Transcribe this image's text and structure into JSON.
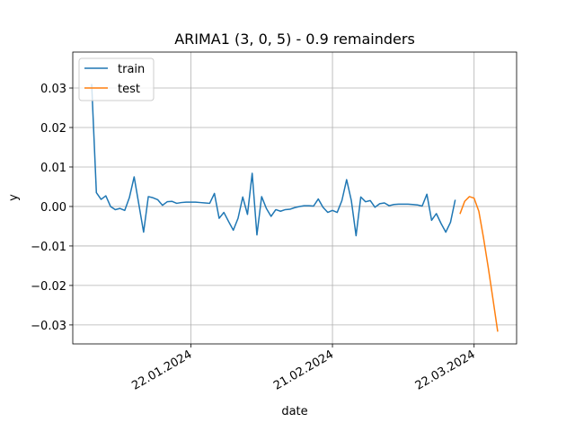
{
  "chart_data": {
    "type": "line",
    "title": "ARIMA1 (3, 0, 5) - 0.9 remainders",
    "x_label": "date",
    "y_label": "y",
    "x": [
      "2024-01-01",
      "2024-01-02",
      "2024-01-03",
      "2024-01-04",
      "2024-01-05",
      "2024-01-06",
      "2024-01-07",
      "2024-01-08",
      "2024-01-09",
      "2024-01-10",
      "2024-01-11",
      "2024-01-12",
      "2024-01-13",
      "2024-01-14",
      "2024-01-15",
      "2024-01-16",
      "2024-01-17",
      "2024-01-18",
      "2024-01-19",
      "2024-01-20",
      "2024-01-21",
      "2024-01-22",
      "2024-01-23",
      "2024-01-24",
      "2024-01-25",
      "2024-01-26",
      "2024-01-27",
      "2024-01-28",
      "2024-01-29",
      "2024-01-30",
      "2024-01-31",
      "2024-02-01",
      "2024-02-02",
      "2024-02-03",
      "2024-02-04",
      "2024-02-05",
      "2024-02-06",
      "2024-02-07",
      "2024-02-08",
      "2024-02-09",
      "2024-02-10",
      "2024-02-11",
      "2024-02-12",
      "2024-02-13",
      "2024-02-14",
      "2024-02-15",
      "2024-02-16",
      "2024-02-17",
      "2024-02-18",
      "2024-02-19",
      "2024-02-20",
      "2024-02-21",
      "2024-02-22",
      "2024-02-23",
      "2024-02-24",
      "2024-02-25",
      "2024-02-26",
      "2024-02-27",
      "2024-02-28",
      "2024-02-29",
      "2024-03-01",
      "2024-03-02",
      "2024-03-03",
      "2024-03-04",
      "2024-03-05",
      "2024-03-06",
      "2024-03-07",
      "2024-03-08",
      "2024-03-09",
      "2024-03-10",
      "2024-03-11",
      "2024-03-12",
      "2024-03-13",
      "2024-03-14",
      "2024-03-15",
      "2024-03-16",
      "2024-03-17",
      "2024-03-18",
      "2024-03-19",
      "2024-03-20",
      "2024-03-21",
      "2024-03-22",
      "2024-03-23",
      "2024-03-24",
      "2024-03-25",
      "2024-03-26",
      "2024-03-27"
    ],
    "series": [
      {
        "name": "train",
        "color": "#1f77b4",
        "values": [
          0.031,
          0.0035,
          0.0018,
          0.0027,
          0.0,
          -0.0008,
          -0.0005,
          -0.001,
          0.0023,
          0.0075,
          0.0005,
          -0.0065,
          0.0025,
          0.0022,
          0.0017,
          0.0003,
          0.0012,
          0.0013,
          0.0008,
          0.001,
          0.0011,
          0.0011,
          0.0011,
          0.001,
          0.0009,
          0.0008,
          0.0033,
          -0.003,
          -0.0015,
          -0.0038,
          -0.006,
          -0.003,
          0.0024,
          -0.002,
          0.0084,
          -0.0072,
          0.0025,
          -0.0005,
          -0.0025,
          -0.0008,
          -0.0012,
          -0.0008,
          -0.0007,
          -0.0003,
          0.0,
          0.0002,
          0.0002,
          0.0001,
          0.0019,
          -0.0002,
          -0.0015,
          -0.001,
          -0.0015,
          0.0015,
          0.0068,
          0.0015,
          -0.0074,
          0.0024,
          0.0012,
          0.0015,
          -0.0002,
          0.0007,
          0.0009,
          0.0002,
          0.0005,
          0.0006,
          0.0006,
          0.0006,
          0.0005,
          0.0004,
          0.0001,
          0.0031,
          -0.0035,
          -0.0018,
          -0.0043,
          -0.0065,
          -0.004,
          0.0017,
          null,
          null,
          null,
          null,
          null,
          null,
          null,
          null,
          null
        ]
      },
      {
        "name": "test",
        "color": "#ff7f0e",
        "values": [
          null,
          null,
          null,
          null,
          null,
          null,
          null,
          null,
          null,
          null,
          null,
          null,
          null,
          null,
          null,
          null,
          null,
          null,
          null,
          null,
          null,
          null,
          null,
          null,
          null,
          null,
          null,
          null,
          null,
          null,
          null,
          null,
          null,
          null,
          null,
          null,
          null,
          null,
          null,
          null,
          null,
          null,
          null,
          null,
          null,
          null,
          null,
          null,
          null,
          null,
          null,
          null,
          null,
          null,
          null,
          null,
          null,
          null,
          null,
          null,
          null,
          null,
          null,
          null,
          null,
          null,
          null,
          null,
          null,
          null,
          null,
          null,
          null,
          null,
          null,
          null,
          null,
          null,
          -0.0019,
          0.0013,
          0.0025,
          0.0021,
          -0.0012,
          -0.008,
          -0.0155,
          -0.0235,
          -0.0317
        ]
      }
    ],
    "xlim": [
      "2023-12-28",
      "2024-03-31"
    ],
    "xticks": [
      {
        "value": "2024-01-22",
        "label": "22.01.2024"
      },
      {
        "value": "2024-02-21",
        "label": "21.02.2024"
      },
      {
        "value": "2024-03-22",
        "label": "22.03.2024"
      }
    ],
    "ylim": [
      -0.0348,
      0.0391
    ],
    "yticks": [
      {
        "value": -0.03,
        "label": "−0.03"
      },
      {
        "value": -0.02,
        "label": "−0.02"
      },
      {
        "value": -0.01,
        "label": "−0.01"
      },
      {
        "value": 0,
        "label": "0.00"
      },
      0.01,
      0.02,
      0.03
    ],
    "grid": true,
    "legend": "upper left"
  }
}
